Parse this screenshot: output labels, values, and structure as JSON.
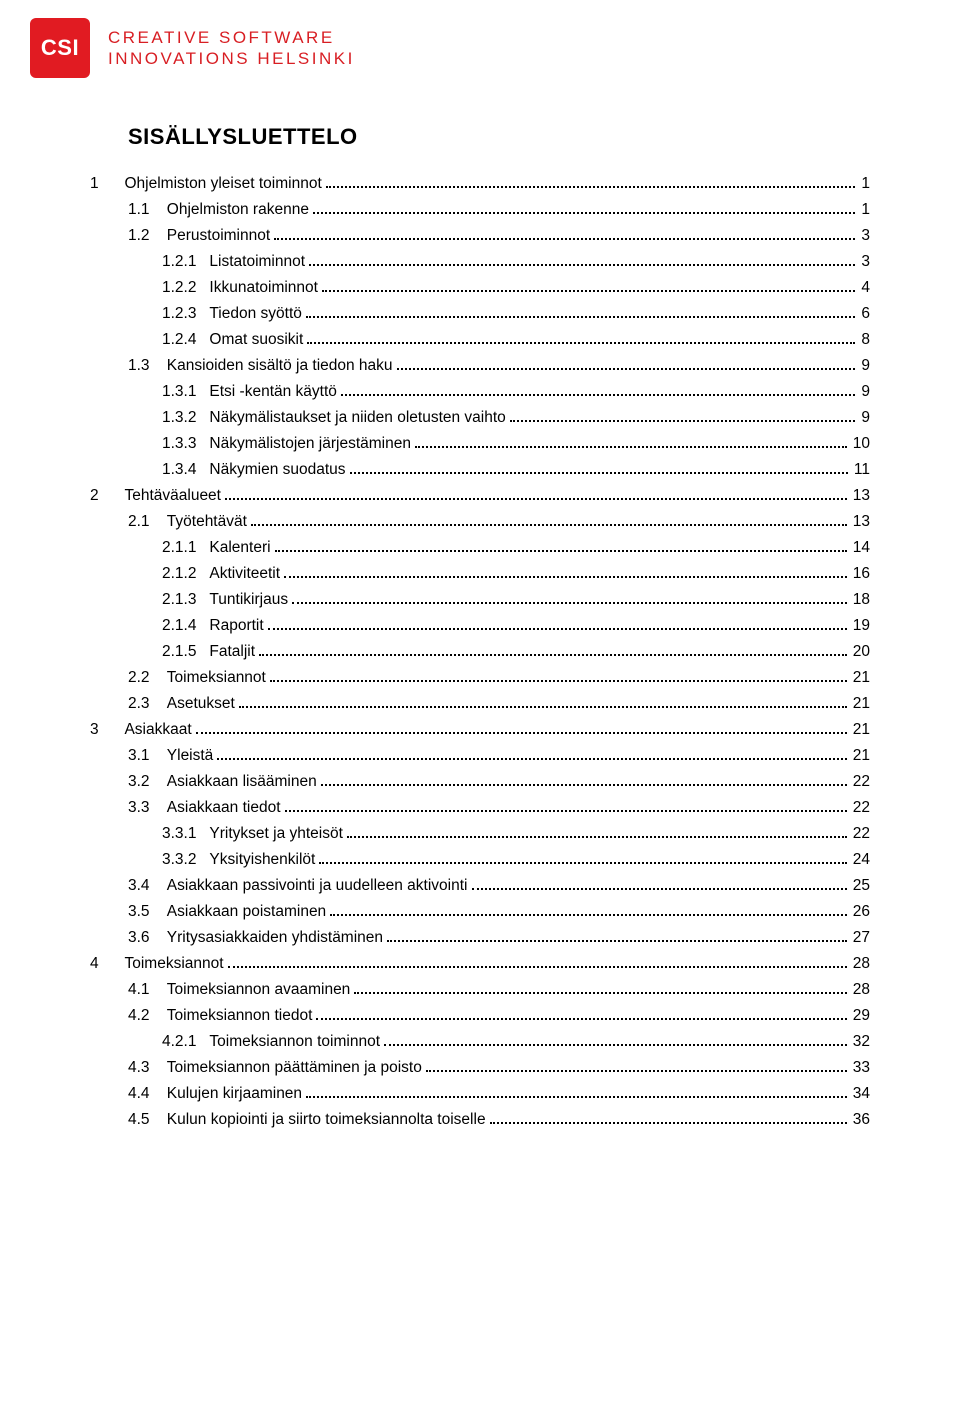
{
  "brand": {
    "badge_text": "CSI",
    "badge_bg": "#e11b22",
    "badge_fg": "#ffffff",
    "line1": "CREATIVE SOFTWARE",
    "line2": "INNOVATIONS HELSINKI",
    "text_color": "#d81e23"
  },
  "title": "SISÄLLYSLUETTELO",
  "typography": {
    "body_font": "Verdana, Geneva, sans-serif",
    "body_size_pt": 12,
    "title_size_pt": 17,
    "title_weight": 700,
    "text_color": "#000000",
    "leader_color": "#000000"
  },
  "page_bg": "#ffffff",
  "toc": [
    {
      "level": 1,
      "num": "1",
      "label": "Ohjelmiston yleiset toiminnot",
      "page": "1"
    },
    {
      "level": 2,
      "num": "1.1",
      "label": "Ohjelmiston rakenne",
      "page": "1"
    },
    {
      "level": 2,
      "num": "1.2",
      "label": "Perustoiminnot",
      "page": "3"
    },
    {
      "level": 3,
      "num": "1.2.1",
      "label": "Listatoiminnot",
      "page": "3"
    },
    {
      "level": 3,
      "num": "1.2.2",
      "label": "Ikkunatoiminnot",
      "page": "4"
    },
    {
      "level": 3,
      "num": "1.2.3",
      "label": "Tiedon syöttö",
      "page": "6"
    },
    {
      "level": 3,
      "num": "1.2.4",
      "label": "Omat suosikit",
      "page": "8"
    },
    {
      "level": 2,
      "num": "1.3",
      "label": "Kansioiden sisältö ja tiedon haku",
      "page": "9"
    },
    {
      "level": 3,
      "num": "1.3.1",
      "label": "Etsi -kentän käyttö",
      "page": "9"
    },
    {
      "level": 3,
      "num": "1.3.2",
      "label": "Näkymälistaukset ja niiden oletusten vaihto",
      "page": "9"
    },
    {
      "level": 3,
      "num": "1.3.3",
      "label": "Näkymälistojen järjestäminen",
      "page": "10"
    },
    {
      "level": 3,
      "num": "1.3.4",
      "label": "Näkymien suodatus",
      "page": "11"
    },
    {
      "level": 1,
      "num": "2",
      "label": "Tehtäväalueet",
      "page": "13"
    },
    {
      "level": 2,
      "num": "2.1",
      "label": "Työtehtävät",
      "page": "13"
    },
    {
      "level": 3,
      "num": "2.1.1",
      "label": "Kalenteri",
      "page": "14"
    },
    {
      "level": 3,
      "num": "2.1.2",
      "label": "Aktiviteetit",
      "page": "16"
    },
    {
      "level": 3,
      "num": "2.1.3",
      "label": "Tuntikirjaus",
      "page": "18"
    },
    {
      "level": 3,
      "num": "2.1.4",
      "label": "Raportit",
      "page": "19"
    },
    {
      "level": 3,
      "num": "2.1.5",
      "label": "Fataljit",
      "page": "20"
    },
    {
      "level": 2,
      "num": "2.2",
      "label": "Toimeksiannot",
      "page": "21"
    },
    {
      "level": 2,
      "num": "2.3",
      "label": "Asetukset",
      "page": "21"
    },
    {
      "level": 1,
      "num": "3",
      "label": "Asiakkaat",
      "page": "21"
    },
    {
      "level": 2,
      "num": "3.1",
      "label": "Yleistä",
      "page": "21"
    },
    {
      "level": 2,
      "num": "3.2",
      "label": "Asiakkaan lisääminen",
      "page": "22"
    },
    {
      "level": 2,
      "num": "3.3",
      "label": "Asiakkaan tiedot",
      "page": "22"
    },
    {
      "level": 3,
      "num": "3.3.1",
      "label": "Yritykset ja yhteisöt",
      "page": "22"
    },
    {
      "level": 3,
      "num": "3.3.2",
      "label": "Yksityishenkilöt",
      "page": "24"
    },
    {
      "level": 2,
      "num": "3.4",
      "label": "Asiakkaan passivointi ja uudelleen aktivointi",
      "page": "25"
    },
    {
      "level": 2,
      "num": "3.5",
      "label": "Asiakkaan poistaminen",
      "page": "26"
    },
    {
      "level": 2,
      "num": "3.6",
      "label": "Yritysasiakkaiden yhdistäminen",
      "page": "27"
    },
    {
      "level": 1,
      "num": "4",
      "label": "Toimeksiannot",
      "page": "28"
    },
    {
      "level": 2,
      "num": "4.1",
      "label": "Toimeksiannon avaaminen",
      "page": "28"
    },
    {
      "level": 2,
      "num": "4.2",
      "label": "Toimeksiannon tiedot",
      "page": "29"
    },
    {
      "level": 3,
      "num": "4.2.1",
      "label": "Toimeksiannon toiminnot",
      "page": "32"
    },
    {
      "level": 2,
      "num": "4.3",
      "label": "Toimeksiannon päättäminen ja poisto",
      "page": "33"
    },
    {
      "level": 2,
      "num": "4.4",
      "label": "Kulujen kirjaaminen",
      "page": "34"
    },
    {
      "level": 2,
      "num": "4.5",
      "label": "Kulun kopiointi ja siirto toimeksiannolta toiselle",
      "page": "36"
    }
  ]
}
